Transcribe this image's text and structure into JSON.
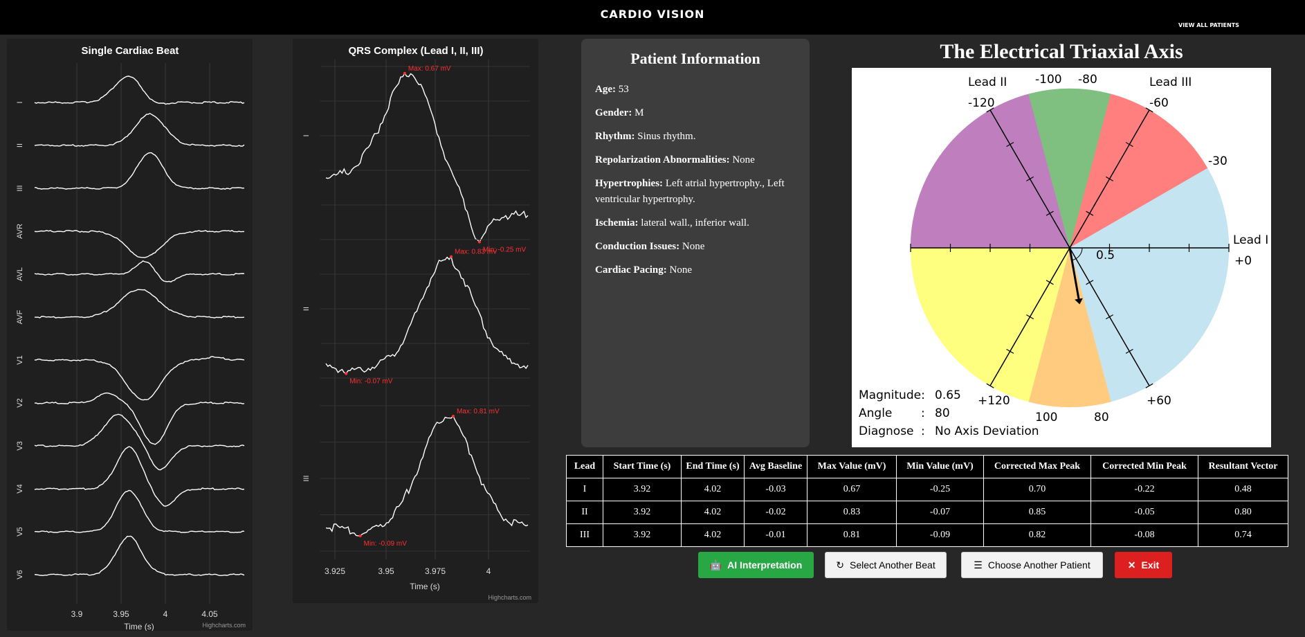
{
  "header": {
    "title": "CARDIO VISION",
    "view_all": "VIEW ALL PATIENTS"
  },
  "beat_chart": {
    "title": "Single Cardiac Beat",
    "xlabel": "Time (s)",
    "credit": "Highcharts.com",
    "leads": [
      "I",
      "II",
      "III",
      "AVR",
      "AVL",
      "AVF",
      "V1",
      "V2",
      "V3",
      "V4",
      "V5",
      "V6"
    ],
    "x_ticks": [
      "3.9",
      "3.95",
      "4",
      "4.05"
    ]
  },
  "qrs_chart": {
    "title": "QRS Complex (Lead I, II, III)",
    "xlabel": "Time (s)",
    "credit": "Highcharts.com",
    "x_ticks": [
      "3.925",
      "3.95",
      "3.975",
      "4"
    ],
    "panels": [
      {
        "lead": "I",
        "max_label": "Max: 0.67 mV",
        "min_label": "Min: -0.25 mV"
      },
      {
        "lead": "II",
        "max_label": "Max: 0.83 mV",
        "min_label": "Min: -0.07 mV"
      },
      {
        "lead": "III",
        "max_label": "Max: 0.81 mV",
        "min_label": "Min: -0.09 mV"
      }
    ]
  },
  "patient": {
    "title": "Patient Information",
    "fields": [
      {
        "label": "Age:",
        "value": "53"
      },
      {
        "label": "Gender:",
        "value": "M"
      },
      {
        "label": "Rhythm:",
        "value": "Sinus rhythm."
      },
      {
        "label": "Repolarization Abnormalities:",
        "value": "None"
      },
      {
        "label": "Hypertrophies:",
        "value": "Left atrial hypertrophy., Left ventricular hypertrophy."
      },
      {
        "label": "Ischemia:",
        "value": "lateral wall., inferior wall."
      },
      {
        "label": "Conduction Issues:",
        "value": "None"
      },
      {
        "label": "Cardiac Pacing:",
        "value": "None"
      }
    ]
  },
  "axis": {
    "title": "The Electrical Triaxial Axis",
    "lead_labels": [
      "Lead I",
      "Lead II",
      "Lead III"
    ],
    "angle_labels": [
      "+0",
      "-30",
      "-60",
      "-80",
      "-100",
      "-120",
      "+60",
      "80",
      "100",
      "+120"
    ],
    "radius_label": "0.5",
    "magnitude_label": "Magnitude:",
    "magnitude_value": "0.65",
    "angle_label": "Angle",
    "angle_value": "80",
    "diagnose_label": "Diagnose",
    "diagnose_value": "No Axis Deviation",
    "sep": ":",
    "vector_angle": 80,
    "vector_magnitude": 0.65,
    "sector_colors": {
      "purple": "#bf7fbf",
      "green": "#7fbf7f",
      "red": "#ff7f7f",
      "blue": "#c5e4f1",
      "yellow": "#ffff7f",
      "orange": "#ffcc7f"
    }
  },
  "table": {
    "headers": [
      "Lead",
      "Start Time (s)",
      "End Time (s)",
      "Avg Baseline",
      "Max Value (mV)",
      "Min Value (mV)",
      "Corrected Max Peak",
      "Corrected Min Peak",
      "Resultant Vector"
    ],
    "rows": [
      [
        "I",
        "3.92",
        "4.02",
        "-0.03",
        "0.67",
        "-0.25",
        "0.70",
        "-0.22",
        "0.48"
      ],
      [
        "II",
        "3.92",
        "4.02",
        "-0.02",
        "0.83",
        "-0.07",
        "0.85",
        "-0.05",
        "0.80"
      ],
      [
        "III",
        "3.92",
        "4.02",
        "-0.01",
        "0.81",
        "-0.09",
        "0.82",
        "-0.08",
        "0.74"
      ]
    ]
  },
  "buttons": {
    "ai": "AI Interpretation",
    "beat": "Select Another Beat",
    "patient": "Choose Another Patient",
    "exit": "Exit"
  }
}
